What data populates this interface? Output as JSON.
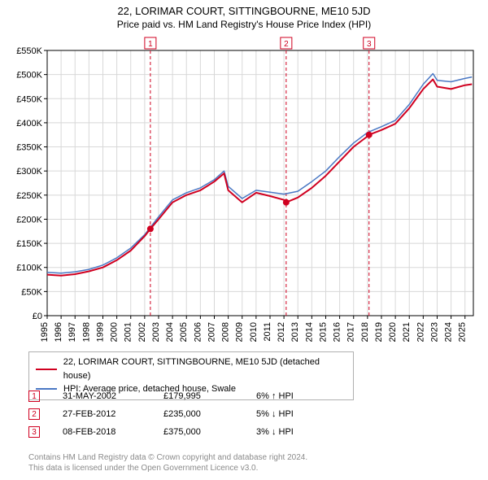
{
  "title": "22, LORIMAR COURT, SITTINGBOURNE, ME10 5JD",
  "subtitle": "Price paid vs. HM Land Registry's House Price Index (HPI)",
  "chart": {
    "type": "line",
    "background_color": "#ffffff",
    "grid_color": "#d8d8d8",
    "axis_color": "#000000",
    "label_fontsize": 11,
    "xlim": [
      1995,
      2025.6
    ],
    "ylim": [
      0,
      550000
    ],
    "ytick_step": 50000,
    "ytick_prefix": "£",
    "ytick_suffix": "K",
    "yticks": [
      "£0",
      "£50K",
      "£100K",
      "£150K",
      "£200K",
      "£250K",
      "£300K",
      "£350K",
      "£400K",
      "£450K",
      "£500K",
      "£550K"
    ],
    "xticks": [
      1995,
      1996,
      1997,
      1998,
      1999,
      2000,
      2001,
      2002,
      2003,
      2004,
      2005,
      2006,
      2007,
      2008,
      2009,
      2010,
      2011,
      2012,
      2013,
      2014,
      2015,
      2016,
      2017,
      2018,
      2019,
      2020,
      2021,
      2022,
      2023,
      2024,
      2025
    ],
    "series": [
      {
        "name": "red",
        "label": "22, LORIMAR COURT, SITTINGBOURNE, ME10 5JD (detached house)",
        "color": "#d00020",
        "line_width": 2,
        "data": [
          [
            1995,
            85000
          ],
          [
            1996,
            83000
          ],
          [
            1997,
            86000
          ],
          [
            1998,
            92000
          ],
          [
            1999,
            100000
          ],
          [
            2000,
            115000
          ],
          [
            2001,
            135000
          ],
          [
            2002,
            165000
          ],
          [
            2002.41,
            179995
          ],
          [
            2003,
            200000
          ],
          [
            2004,
            235000
          ],
          [
            2005,
            250000
          ],
          [
            2006,
            260000
          ],
          [
            2007,
            278000
          ],
          [
            2007.7,
            295000
          ],
          [
            2008,
            260000
          ],
          [
            2009,
            235000
          ],
          [
            2010,
            255000
          ],
          [
            2011,
            248000
          ],
          [
            2012,
            240000
          ],
          [
            2012.16,
            235000
          ],
          [
            2013,
            245000
          ],
          [
            2014,
            265000
          ],
          [
            2015,
            290000
          ],
          [
            2016,
            320000
          ],
          [
            2017,
            350000
          ],
          [
            2018,
            372000
          ],
          [
            2018.11,
            375000
          ],
          [
            2019,
            385000
          ],
          [
            2020,
            398000
          ],
          [
            2021,
            430000
          ],
          [
            2022,
            470000
          ],
          [
            2022.7,
            490000
          ],
          [
            2023,
            475000
          ],
          [
            2024,
            470000
          ],
          [
            2025,
            478000
          ],
          [
            2025.5,
            480000
          ]
        ]
      },
      {
        "name": "blue",
        "label": "HPI: Average price, detached house, Swale",
        "color": "#4a78c4",
        "line_width": 1.5,
        "data": [
          [
            1995,
            90000
          ],
          [
            1996,
            88000
          ],
          [
            1997,
            91000
          ],
          [
            1998,
            96000
          ],
          [
            1999,
            105000
          ],
          [
            2000,
            120000
          ],
          [
            2001,
            140000
          ],
          [
            2002,
            168000
          ],
          [
            2003,
            205000
          ],
          [
            2004,
            240000
          ],
          [
            2005,
            255000
          ],
          [
            2006,
            265000
          ],
          [
            2007,
            282000
          ],
          [
            2007.7,
            300000
          ],
          [
            2008,
            268000
          ],
          [
            2009,
            243000
          ],
          [
            2010,
            260000
          ],
          [
            2011,
            256000
          ],
          [
            2012,
            252000
          ],
          [
            2013,
            258000
          ],
          [
            2014,
            278000
          ],
          [
            2015,
            300000
          ],
          [
            2016,
            330000
          ],
          [
            2017,
            358000
          ],
          [
            2018,
            380000
          ],
          [
            2019,
            392000
          ],
          [
            2020,
            405000
          ],
          [
            2021,
            438000
          ],
          [
            2022,
            480000
          ],
          [
            2022.7,
            502000
          ],
          [
            2023,
            488000
          ],
          [
            2024,
            485000
          ],
          [
            2025,
            492000
          ],
          [
            2025.5,
            495000
          ]
        ]
      }
    ],
    "markers": [
      {
        "n": "1",
        "x": 2002.41,
        "y": 179995,
        "vline_color": "#d00020",
        "vline_dash": "4 3",
        "box_top": true
      },
      {
        "n": "2",
        "x": 2012.16,
        "y": 235000,
        "vline_color": "#d00020",
        "vline_dash": "4 3",
        "box_top": true
      },
      {
        "n": "3",
        "x": 2018.11,
        "y": 375000,
        "vline_color": "#d00020",
        "vline_dash": "4 3",
        "box_top": true
      }
    ],
    "marker_dot_color": "#d00020",
    "marker_dot_radius": 4,
    "marker_box_border": "#d00020",
    "marker_box_text_color": "#d00020",
    "marker_box_size": 14
  },
  "legend": {
    "border_color": "#b0b0b0",
    "items": [
      {
        "color": "#d00020",
        "label": "22, LORIMAR COURT, SITTINGBOURNE, ME10 5JD (detached house)"
      },
      {
        "color": "#4a78c4",
        "label": "HPI: Average price, detached house, Swale"
      }
    ]
  },
  "transactions": [
    {
      "n": "1",
      "date": "31-MAY-2002",
      "price": "£179,995",
      "diff": "6% ↑ HPI"
    },
    {
      "n": "2",
      "date": "27-FEB-2012",
      "price": "£235,000",
      "diff": "5% ↓ HPI"
    },
    {
      "n": "3",
      "date": "08-FEB-2018",
      "price": "£375,000",
      "diff": "3% ↓ HPI"
    }
  ],
  "footer": {
    "line1": "Contains HM Land Registry data © Crown copyright and database right 2024.",
    "line2": "This data is licensed under the Open Government Licence v3.0."
  }
}
